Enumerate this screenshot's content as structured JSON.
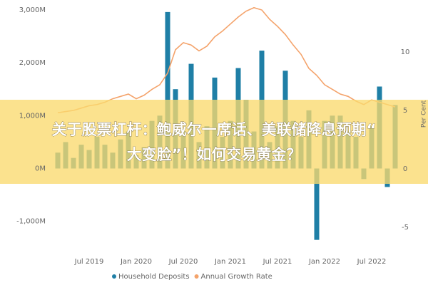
{
  "chart_data": {
    "type": "bar",
    "categories": [
      null,
      null,
      null,
      null,
      "Jul 2019",
      null,
      null,
      null,
      null,
      null,
      "Jan 2020",
      null,
      null,
      null,
      null,
      null,
      "Jul 2020",
      null,
      null,
      null,
      null,
      null,
      "Jan 2021",
      null,
      null,
      null,
      null,
      null,
      "Jul 2021",
      null,
      null,
      null,
      null,
      null,
      "Jan 2022",
      null,
      null,
      null,
      null,
      null,
      "Jul 2022",
      null,
      null,
      null
    ],
    "series": [
      {
        "name": "Household Deposits",
        "color": "#1f7fa6",
        "values": [
          300,
          500,
          200,
          450,
          350,
          600,
          450,
          300,
          550,
          700,
          250,
          400,
          900,
          1000,
          2960,
          1500,
          700,
          1980,
          500,
          800,
          1720,
          600,
          900,
          1900,
          1300,
          700,
          2230,
          500,
          800,
          1850,
          900,
          600,
          1100,
          -1350,
          900,
          1000,
          1000,
          700,
          600,
          -200,
          800,
          1550,
          -350,
          1200
        ]
      },
      {
        "name": "Annual Growth Rate",
        "color": "#f4a36b",
        "type": "line",
        "axis": "y2",
        "values": [
          4.8,
          4.9,
          5.0,
          5.2,
          5.4,
          5.5,
          5.7,
          6.0,
          6.2,
          6.4,
          6.0,
          6.3,
          6.8,
          7.2,
          8.2,
          10.2,
          10.8,
          10.6,
          10.1,
          10.5,
          11.3,
          11.8,
          12.4,
          13.0,
          13.5,
          13.8,
          13.6,
          12.8,
          12.2,
          11.5,
          10.6,
          9.8,
          8.6,
          8.0,
          7.2,
          6.8,
          6.4,
          6.2,
          5.8,
          5.5,
          5.9,
          5.7,
          5.5,
          5.3
        ]
      }
    ],
    "ylim": [
      -1530,
      3120
    ],
    "yticks": [
      {
        "value": -1000,
        "label": "-1,000M"
      },
      {
        "value": 0,
        "label": "0M"
      },
      {
        "value": 1000,
        "label": "1,000M"
      },
      {
        "value": 2000,
        "label": "2,000M"
      },
      {
        "value": 3000,
        "label": "3,000M"
      }
    ],
    "y2lim": [
      -6.9,
      14.15
    ],
    "y2ticks": [
      -5,
      0,
      5,
      10
    ],
    "y2label": "Per Cent",
    "legend": "bottom"
  },
  "overlay": {
    "lines": [
      "关于股票杠杆：鲍威尔一席话、美联储降息预期“",
      "大变脸”！如何交易黄金？"
    ]
  }
}
